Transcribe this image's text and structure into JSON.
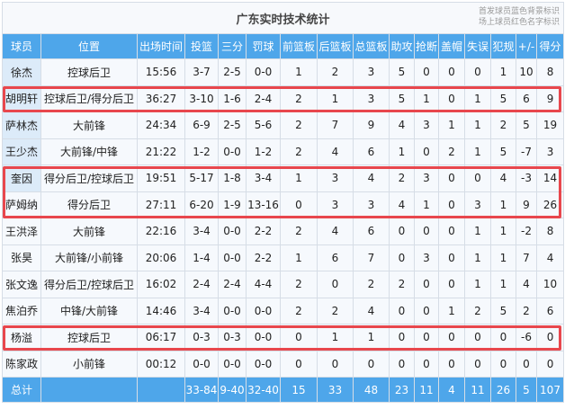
{
  "title": "广东实时技术统计",
  "notes": [
    "首发球员蓝色背景标识",
    "场上球员红色名字标识"
  ],
  "columns": [
    "球员",
    "位置",
    "出场时间",
    "投篮",
    "三分",
    "罚球",
    "前篮板",
    "后篮板",
    "总篮板",
    "助攻",
    "抢断",
    "盖帽",
    "失误",
    "犯规",
    "+/-",
    "得分"
  ],
  "rows": [
    [
      "徐杰",
      "控球后卫",
      "15:56",
      "3-7",
      "2-5",
      "0-0",
      "1",
      "2",
      "3",
      "5",
      "0",
      "0",
      "0",
      "1",
      "10",
      "8"
    ],
    [
      "胡明轩",
      "控球后卫/得分后卫",
      "36:27",
      "3-10",
      "1-6",
      "2-4",
      "2",
      "1",
      "3",
      "5",
      "1",
      "0",
      "1",
      "5",
      "6",
      "9"
    ],
    [
      "萨林杰",
      "大前锋",
      "24:34",
      "6-9",
      "2-5",
      "5-6",
      "2",
      "7",
      "9",
      "4",
      "3",
      "1",
      "1",
      "2",
      "5",
      "19"
    ],
    [
      "王少杰",
      "大前锋/中锋",
      "21:22",
      "1-2",
      "0-0",
      "1-2",
      "2",
      "4",
      "6",
      "1",
      "0",
      "2",
      "1",
      "5",
      "-7",
      "3"
    ],
    [
      "奎因",
      "得分后卫/控球后卫",
      "19:51",
      "5-17",
      "1-8",
      "3-4",
      "1",
      "3",
      "4",
      "2",
      "3",
      "0",
      "0",
      "4",
      "-3",
      "14"
    ],
    [
      "萨姆纳",
      "得分后卫",
      "27:11",
      "6-20",
      "1-9",
      "13-16",
      "0",
      "3",
      "3",
      "4",
      "1",
      "0",
      "3",
      "1",
      "9",
      "26"
    ],
    [
      "王洪泽",
      "大前锋",
      "22:16",
      "3-4",
      "0-0",
      "2-2",
      "2",
      "4",
      "6",
      "0",
      "0",
      "0",
      "1",
      "1",
      "-2",
      "8"
    ],
    [
      "张昊",
      "大前锋/小前锋",
      "20:06",
      "1-4",
      "0-0",
      "2-2",
      "1",
      "6",
      "7",
      "0",
      "3",
      "0",
      "1",
      "1",
      "7",
      "4"
    ],
    [
      "张文逸",
      "得分后卫/控球后卫",
      "16:02",
      "2-4",
      "2-4",
      "4-4",
      "2",
      "0",
      "2",
      "2",
      "0",
      "0",
      "1",
      "1",
      "4",
      "10"
    ],
    [
      "焦泊乔",
      "中锋/大前锋",
      "14:46",
      "3-4",
      "0-0",
      "0-0",
      "2",
      "2",
      "4",
      "0",
      "0",
      "1",
      "2",
      "5",
      "2",
      "6"
    ],
    [
      "杨溢",
      "控球后卫",
      "06:17",
      "0-3",
      "0-3",
      "0-0",
      "0",
      "1",
      "1",
      "0",
      "0",
      "0",
      "0",
      "0",
      "-6",
      "0"
    ],
    [
      "陈家政",
      "小前锋",
      "00:12",
      "0-0",
      "0-0",
      "0-0",
      "0",
      "0",
      "0",
      "0",
      "0",
      "0",
      "0",
      "0",
      "0",
      "0"
    ]
  ],
  "starters": [
    0,
    1,
    2,
    3,
    4
  ],
  "highlighted_rows": [
    [
      1,
      1
    ],
    [
      4,
      5
    ],
    [
      10,
      10
    ]
  ],
  "total": [
    "总计",
    "",
    "",
    "33-84",
    "9-40",
    "32-40",
    "15",
    "33",
    "48",
    "23",
    "11",
    "4",
    "11",
    "26",
    "5",
    "107"
  ],
  "colors": {
    "header": "#4ea6ea",
    "starter": "#dcebf9",
    "highlight": "#e8474d"
  }
}
